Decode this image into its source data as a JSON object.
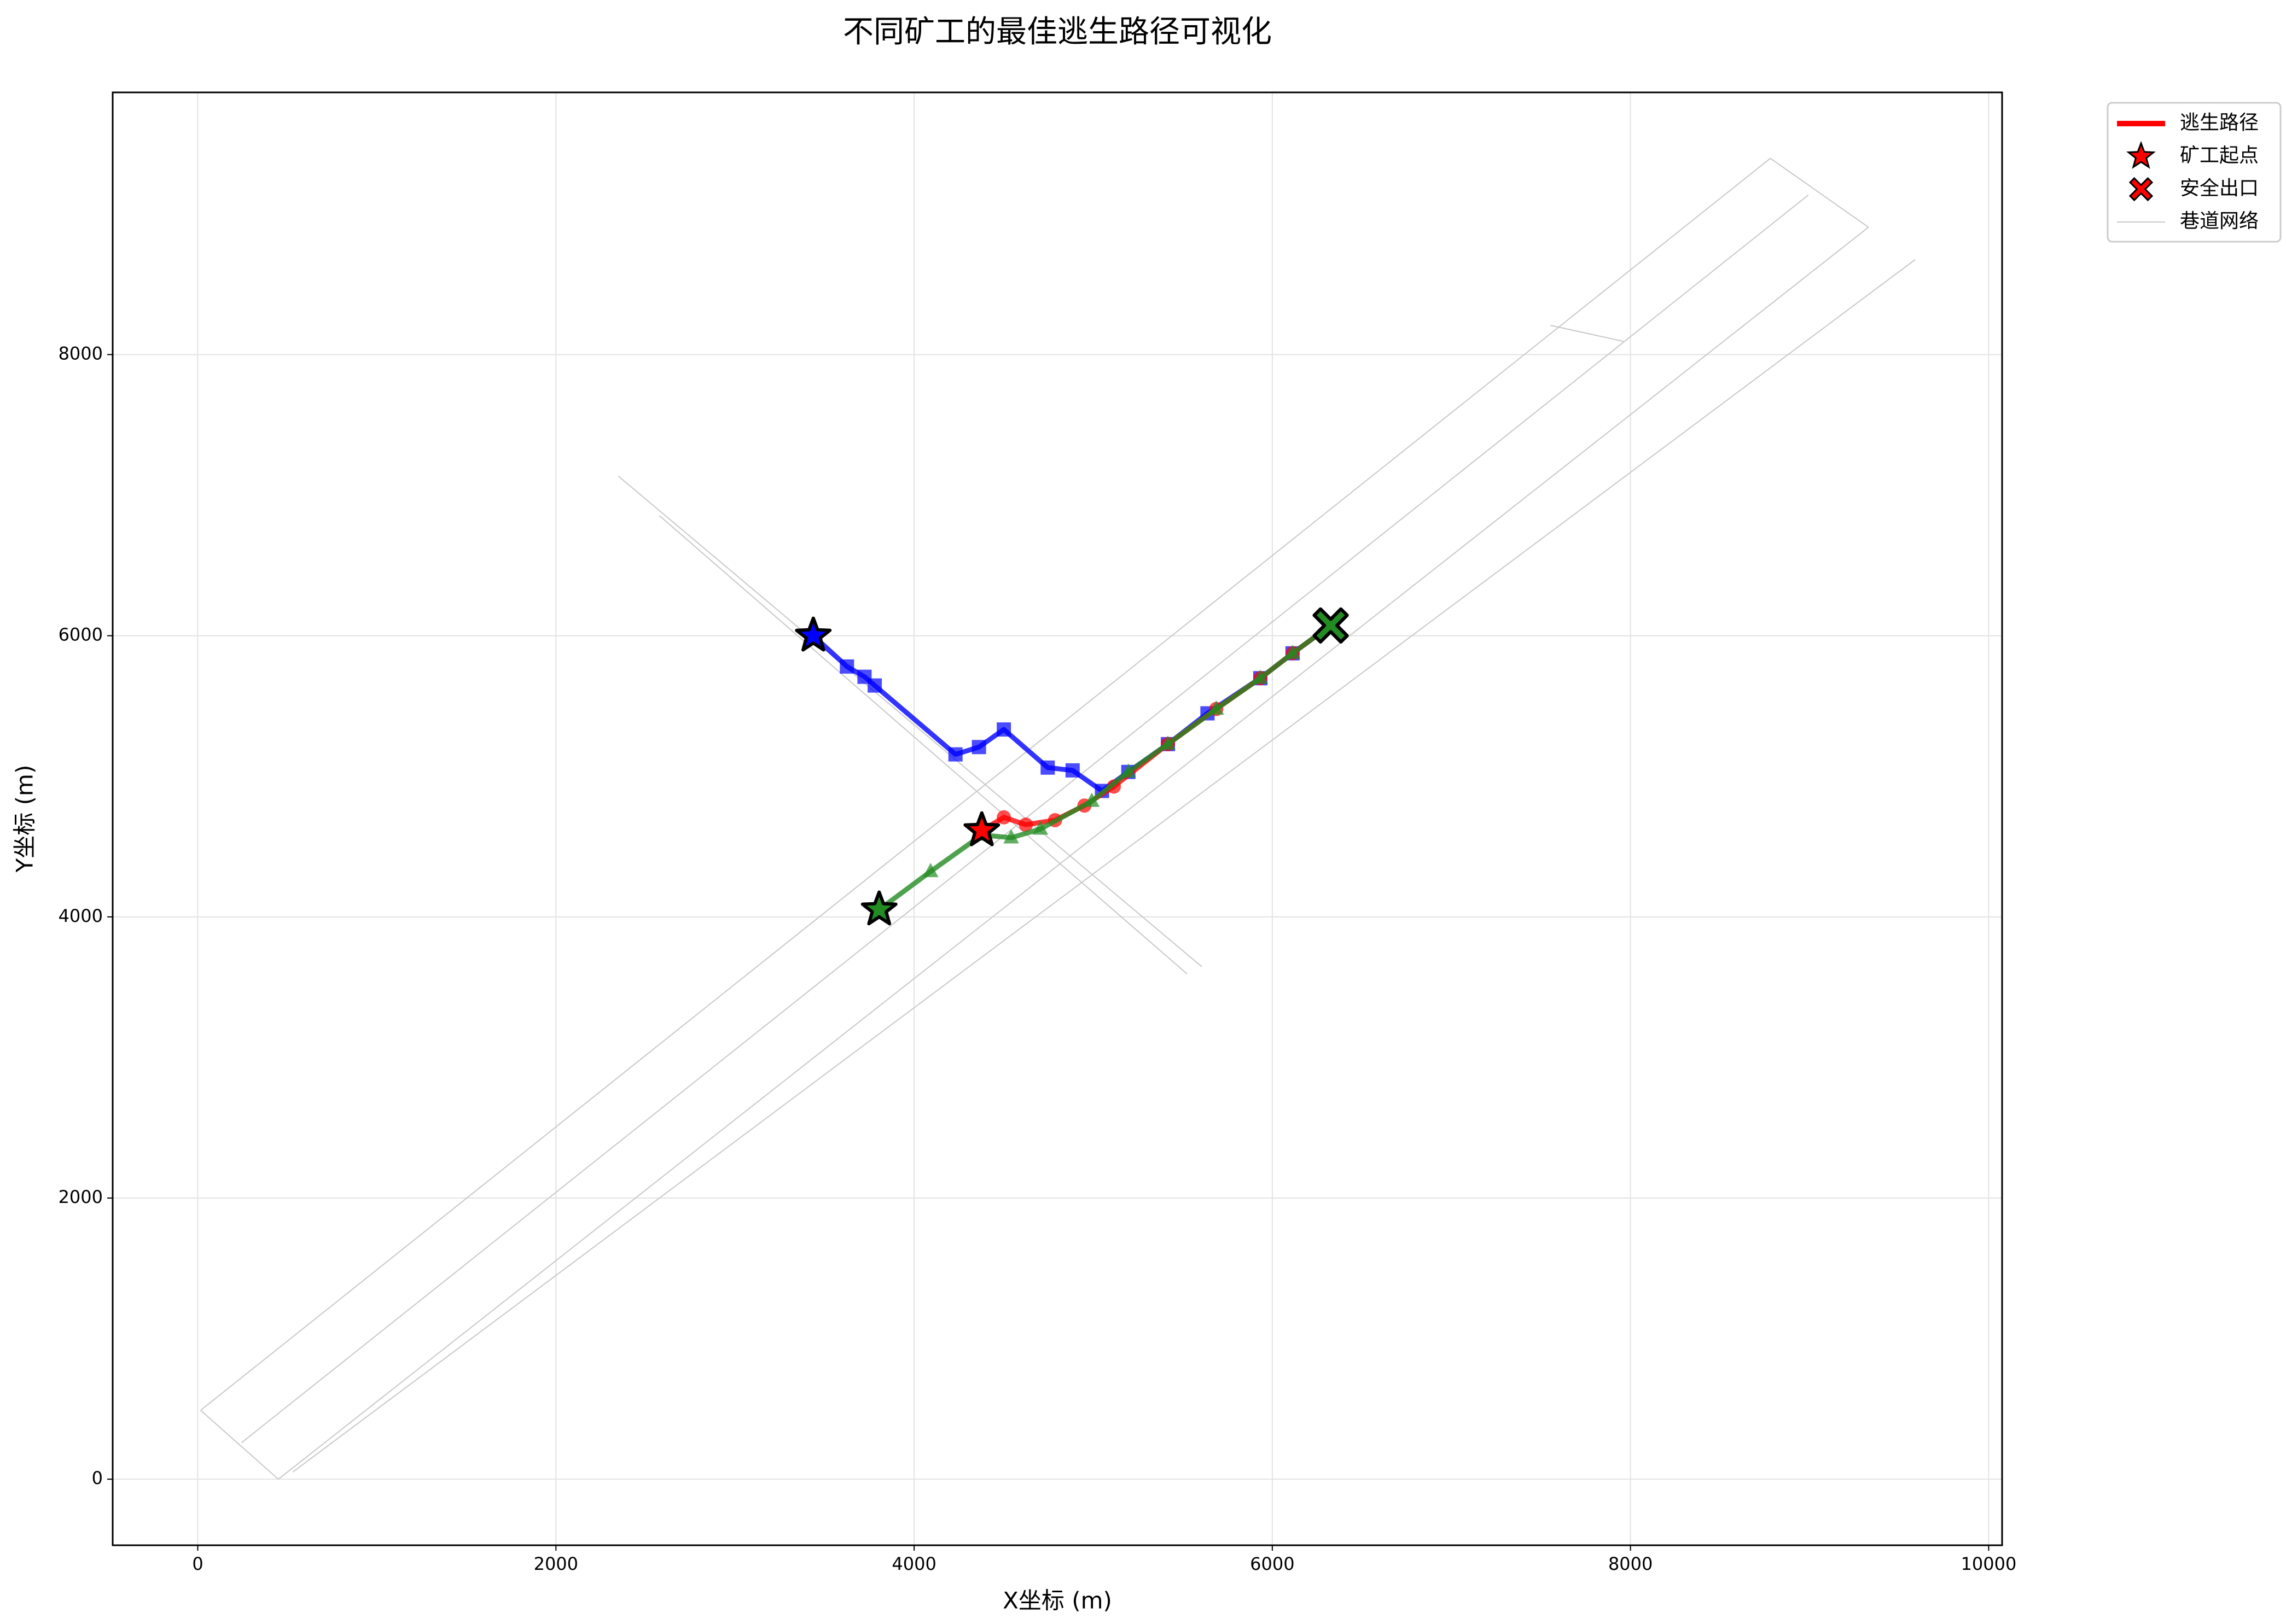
{
  "chart_data": {
    "type": "line",
    "title": "不同矿工的最佳逃生路径可视化",
    "x_label": "X坐标 (m)",
    "y_label": "Y坐标 (m)",
    "xlim": [
      -475,
      10075
    ],
    "ylim": [
      -470,
      9865
    ],
    "xticks": [
      0,
      2000,
      4000,
      6000,
      8000,
      10000
    ],
    "yticks": [
      0,
      2000,
      4000,
      6000,
      8000
    ],
    "grid": true,
    "network_color": "#c8c8c8",
    "network": [
      {
        "x": [
          16,
          8781
        ],
        "y": [
          490,
          9396
        ]
      },
      {
        "x": [
          245,
          8993
        ],
        "y": [
          260,
          9135
        ]
      },
      {
        "x": [
          450,
          9329
        ],
        "y": [
          0,
          8906
        ]
      },
      {
        "x": [
          532,
          9591
        ],
        "y": [
          52,
          8677
        ]
      },
      {
        "x": [
          2349,
          5606
        ],
        "y": [
          7135,
          3646
        ]
      },
      {
        "x": [
          2578,
          5524
        ],
        "y": [
          6854,
          3594
        ]
      },
      {
        "x": [
          7553,
          7962
        ],
        "y": [
          8208,
          8094
        ]
      },
      {
        "x": [
          16,
          450
        ],
        "y": [
          490,
          0
        ]
      },
      {
        "x": [
          8781,
          9329
        ],
        "y": [
          9396,
          8906
        ]
      }
    ],
    "series": [
      {
        "color": "#0000ff",
        "marker": "square",
        "x": [
          3437,
          3625,
          3723,
          3780,
          4231,
          4362,
          4501,
          4746,
          4885,
          5049,
          5196,
          5417,
          5638,
          5933,
          6113,
          6326
        ],
        "values": [
          6000,
          5781,
          5708,
          5646,
          5156,
          5208,
          5333,
          5062,
          5042,
          4896,
          5031,
          5229,
          5448,
          5698,
          5875,
          6073
        ]
      },
      {
        "color": "#ff0000",
        "marker": "circle",
        "x": [
          4378,
          4501,
          4624,
          4787,
          4951,
          5115,
          5417,
          5687,
          5933,
          6113,
          6326
        ],
        "values": [
          4615,
          4708,
          4656,
          4688,
          4792,
          4927,
          5229,
          5479,
          5698,
          5875,
          6073
        ]
      },
      {
        "color": "#228b22",
        "marker": "triangle",
        "x": [
          3805,
          4092,
          4378,
          4542,
          4705,
          4992,
          5196,
          5417,
          5687,
          5933,
          6113,
          6326
        ],
        "values": [
          4052,
          4323,
          4583,
          4563,
          4625,
          4823,
          5031,
          5229,
          5479,
          5698,
          5875,
          6073
        ]
      }
    ],
    "legend": [
      {
        "label": "逃生路径",
        "kind": "line",
        "color": "#ff0000"
      },
      {
        "label": "矿工起点",
        "kind": "star",
        "color": "#ff0000"
      },
      {
        "label": "安全出口",
        "kind": "cross",
        "color": "#ff0000"
      },
      {
        "label": "巷道网络",
        "kind": "thin",
        "color": "#c8c8c8"
      }
    ]
  }
}
